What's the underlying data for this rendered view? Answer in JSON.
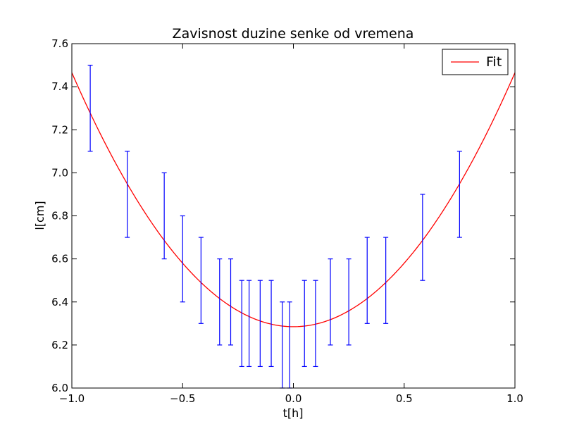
{
  "chart_data": {
    "type": "scatter",
    "title": "Zavisnost duzine senke od vremena",
    "xlabel": "t[h]",
    "ylabel": "l[cm]",
    "xlim": [
      -1.0,
      1.0
    ],
    "ylim": [
      6.0,
      7.6
    ],
    "grid": false,
    "legend_position": "top-right",
    "x_ticks": [
      "−1.0",
      "−0.5",
      "0.0",
      "0.5",
      "1.0"
    ],
    "y_ticks": [
      "6.0",
      "6.2",
      "6.4",
      "6.6",
      "6.8",
      "7.0",
      "7.2",
      "7.4",
      "7.6"
    ],
    "colors": {
      "errorbars": "#0000ff",
      "fit": "#ff0000",
      "axes": "#000000"
    },
    "measurements": {
      "x": [
        -0.917,
        -0.75,
        -0.583,
        -0.5,
        -0.417,
        -0.333,
        -0.283,
        -0.233,
        -0.2,
        -0.15,
        -0.1,
        -0.05,
        -0.017,
        0.05,
        0.1,
        0.167,
        0.25,
        0.333,
        0.417,
        0.583,
        0.75
      ],
      "low": [
        7.1,
        6.7,
        6.6,
        6.4,
        6.3,
        6.2,
        6.2,
        6.1,
        6.1,
        6.1,
        6.1,
        6.0,
        6.0,
        6.1,
        6.1,
        6.2,
        6.2,
        6.3,
        6.3,
        6.5,
        6.7
      ],
      "high": [
        7.5,
        7.1,
        7.0,
        6.8,
        6.7,
        6.6,
        6.6,
        6.5,
        6.5,
        6.5,
        6.5,
        6.4,
        6.4,
        6.5,
        6.5,
        6.6,
        6.6,
        6.7,
        6.7,
        6.9,
        7.1
      ]
    },
    "series": [
      {
        "name": "Fit",
        "type": "line",
        "x_range": [
          -1.0,
          1.0
        ],
        "vertex_x": 0.0,
        "vertex_y": 6.285,
        "curvature": 1.18
      }
    ]
  }
}
